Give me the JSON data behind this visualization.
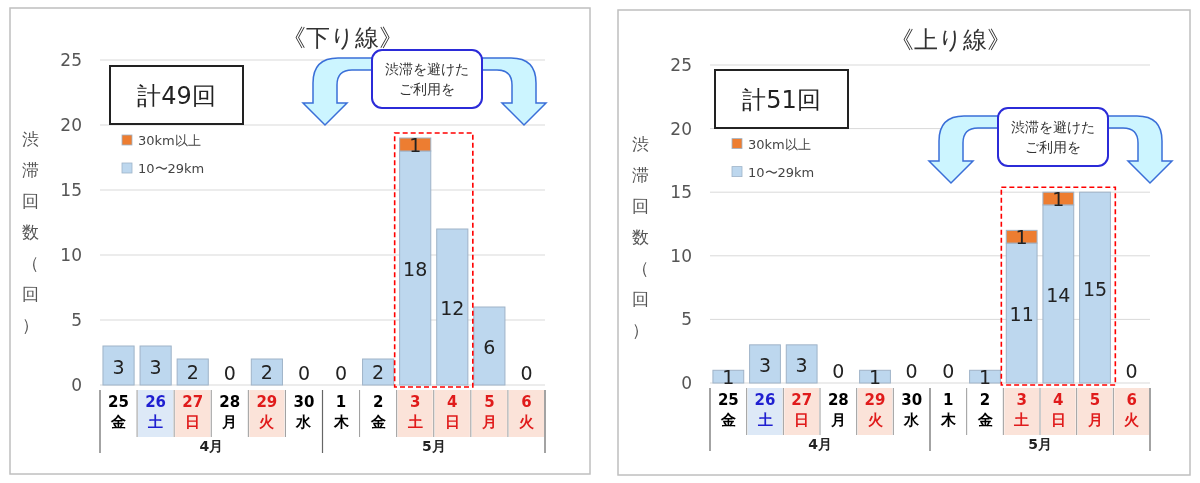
{
  "chart_data": [
    {
      "type": "bar",
      "title": "《下り線》",
      "ylabel": "渋滞回数（回）",
      "stacked": true,
      "categories": [
        "25\n金",
        "26\n土",
        "27\n日",
        "28\n月",
        "29\n火",
        "30\n水",
        "1\n木",
        "2\n金",
        "3\n土",
        "4\n日",
        "5\n月",
        "6\n火"
      ],
      "series": [
        {
          "name": "10〜29km",
          "color": "#bdd7ee",
          "values": [
            3,
            3,
            2,
            0,
            2,
            0,
            0,
            2,
            18,
            12,
            6,
            0
          ],
          "value_labels": [
            "3",
            "3",
            "2",
            "0",
            "2",
            "0",
            "0",
            "2",
            "18",
            "12",
            "6",
            "0"
          ]
        },
        {
          "name": "30km以上",
          "color": "#ed7d31",
          "values": [
            0,
            0,
            0,
            0,
            0,
            0,
            0,
            0,
            1,
            0,
            0,
            0
          ],
          "value_labels": [
            null,
            null,
            null,
            null,
            null,
            null,
            null,
            null,
            "1",
            null,
            null,
            null
          ]
        }
      ],
      "ylim": [
        0,
        25
      ],
      "yticks": [
        0,
        5,
        10,
        15,
        20,
        25
      ],
      "grid": "y",
      "legend": "top left",
      "annotations": [
        "計49回",
        "渋滞を避けたご利用を",
        "4月",
        "5月"
      ]
    },
    {
      "type": "bar",
      "title": "《上り線》",
      "ylabel": "渋滞回数（回）",
      "stacked": true,
      "categories": [
        "25\n金",
        "26\n土",
        "27\n日",
        "28\n月",
        "29\n火",
        "30\n水",
        "1\n木",
        "2\n金",
        "3\n土",
        "4\n日",
        "5\n月",
        "6\n火"
      ],
      "series": [
        {
          "name": "10〜29km",
          "color": "#bdd7ee",
          "values": [
            1,
            3,
            3,
            0,
            1,
            0,
            0,
            1,
            11,
            14,
            15,
            0
          ],
          "value_labels": [
            "1",
            "3",
            "3",
            "0",
            "1",
            "0",
            "0",
            "1",
            "11",
            "14",
            "15",
            "0"
          ]
        },
        {
          "name": "30km以上",
          "color": "#ed7d31",
          "values": [
            0,
            0,
            0,
            0,
            0,
            0,
            0,
            0,
            1,
            1,
            0,
            0
          ],
          "value_labels": [
            null,
            null,
            null,
            null,
            null,
            null,
            null,
            null,
            "1",
            "1",
            null,
            null
          ]
        }
      ],
      "ylim": [
        0,
        25
      ],
      "yticks": [
        0,
        5,
        10,
        15,
        20,
        25
      ],
      "grid": "y",
      "legend": "top left",
      "annotations": [
        "計51回",
        "渋滞を避けたご利用を",
        "4月",
        "5月"
      ]
    }
  ]
}
